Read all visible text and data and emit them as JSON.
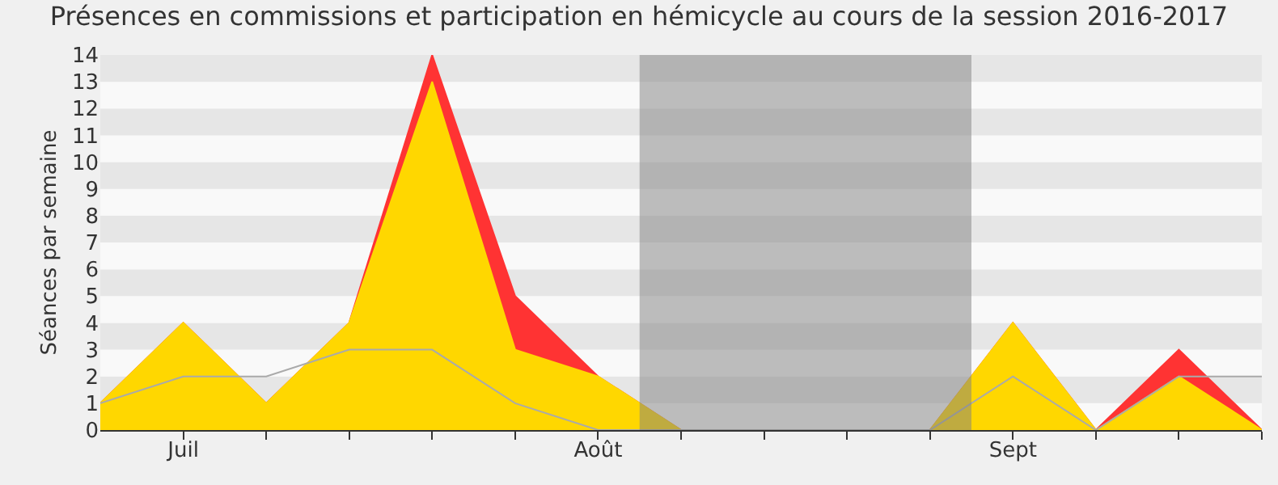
{
  "chart_data": {
    "type": "area",
    "title": "Présences en commissions et participation en hémicycle au cours de la session 2016-2017",
    "ylabel": "Séances par semaine",
    "categories": [
      null,
      "Juil",
      null,
      null,
      null,
      null,
      "Août",
      null,
      null,
      null,
      null,
      "Sept",
      null,
      null,
      null
    ],
    "series": [
      {
        "color": "#ff3333",
        "values": [
          1,
          4,
          1,
          4,
          14,
          5,
          2,
          0,
          0,
          0,
          0,
          4,
          0,
          3,
          0
        ]
      },
      {
        "color": "#ffd700",
        "values": [
          1,
          4,
          1,
          4,
          13,
          3,
          2,
          0,
          0,
          0,
          0,
          4,
          0,
          2,
          0
        ]
      },
      {
        "type": "line",
        "color": "#aaaaaa",
        "values": [
          1,
          2,
          2,
          3,
          3,
          1,
          0,
          0,
          0,
          0,
          0,
          2,
          0,
          2,
          2
        ]
      }
    ],
    "ylim": [
      0,
      14
    ],
    "yticks": [
      0,
      1,
      2,
      3,
      4,
      5,
      6,
      7,
      8,
      9,
      10,
      11,
      12,
      13,
      14
    ],
    "bands": [
      {
        "axis": "x",
        "from": "Août",
        "to": "Sept",
        "color": "#808080"
      }
    ]
  }
}
